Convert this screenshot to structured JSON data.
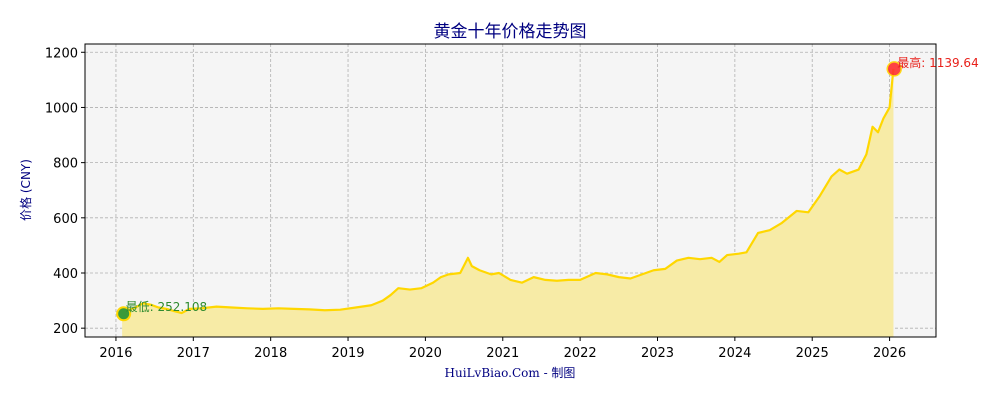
{
  "chart_data": {
    "type": "area",
    "title": "黄金十年价格走势图",
    "ylabel": "价格 (CNY)",
    "xlabel": "",
    "credit": "HuiLvBiao.Com - 制图",
    "xlim": [
      2015.6,
      2026.6
    ],
    "ylim": [
      168,
      1230
    ],
    "x_ticks": [
      2016,
      2017,
      2018,
      2019,
      2020,
      2021,
      2022,
      2023,
      2024,
      2025,
      2026
    ],
    "x_tick_labels": [
      "2016",
      "2017",
      "2018",
      "2019",
      "2020",
      "2021",
      "2022",
      "2023",
      "2024",
      "2025",
      "2026"
    ],
    "y_ticks": [
      200,
      400,
      600,
      800,
      1000,
      1200
    ],
    "y_tick_labels": [
      "200",
      "400",
      "600",
      "800",
      "1000",
      "1200"
    ],
    "grid": true,
    "colors": {
      "line": "#FFD700",
      "fill": "#F7EBA6",
      "plot_bg": "#F5F5F5",
      "min_marker": "#3A9A3A",
      "min_text": "#2E8B2E",
      "max_marker": "#FF3030",
      "max_text": "#E8201A",
      "title": "#000080"
    },
    "series": [
      {
        "x": [
          2016.08,
          2016.15,
          2016.25,
          2016.35,
          2016.45,
          2016.55,
          2016.65,
          2016.75,
          2016.85,
          2016.95,
          2017.1,
          2017.3,
          2017.5,
          2017.7,
          2017.9,
          2018.1,
          2018.3,
          2018.5,
          2018.7,
          2018.9,
          2019.1,
          2019.3,
          2019.45,
          2019.55,
          2019.65,
          2019.8,
          2019.95,
          2020.1,
          2020.2,
          2020.3,
          2020.45,
          2020.55,
          2020.6,
          2020.7,
          2020.85,
          2020.95,
          2021.1,
          2021.25,
          2021.4,
          2021.55,
          2021.7,
          2021.85,
          2022.0,
          2022.2,
          2022.35,
          2022.5,
          2022.65,
          2022.8,
          2022.95,
          2023.1,
          2023.25,
          2023.4,
          2023.55,
          2023.7,
          2023.8,
          2023.9,
          2024.05,
          2024.15,
          2024.3,
          2024.45,
          2024.6,
          2024.8,
          2024.95,
          2025.1,
          2025.25,
          2025.35,
          2025.45,
          2025.6,
          2025.7,
          2025.78,
          2025.85,
          2025.92,
          2026.0,
          2026.05
        ],
        "y": [
          252.1,
          265,
          275,
          290,
          285,
          275,
          270,
          262,
          255,
          270,
          272,
          278,
          275,
          272,
          270,
          272,
          270,
          268,
          265,
          267,
          275,
          283,
          300,
          320,
          345,
          340,
          345,
          365,
          385,
          395,
          400,
          455,
          425,
          410,
          395,
          400,
          375,
          365,
          385,
          375,
          372,
          375,
          375,
          400,
          395,
          385,
          380,
          395,
          410,
          415,
          445,
          455,
          450,
          455,
          440,
          465,
          470,
          475,
          545,
          555,
          580,
          625,
          620,
          680,
          750,
          775,
          760,
          775,
          830,
          930,
          910,
          960,
          1000,
          1139.64
        ]
      }
    ],
    "annotations": {
      "min_label": "最低: 252.108",
      "max_label": "最高: 1139.64",
      "min": {
        "x": 2016.1,
        "y": 252.108
      },
      "max": {
        "x": 2026.06,
        "y": 1139.64
      }
    }
  }
}
